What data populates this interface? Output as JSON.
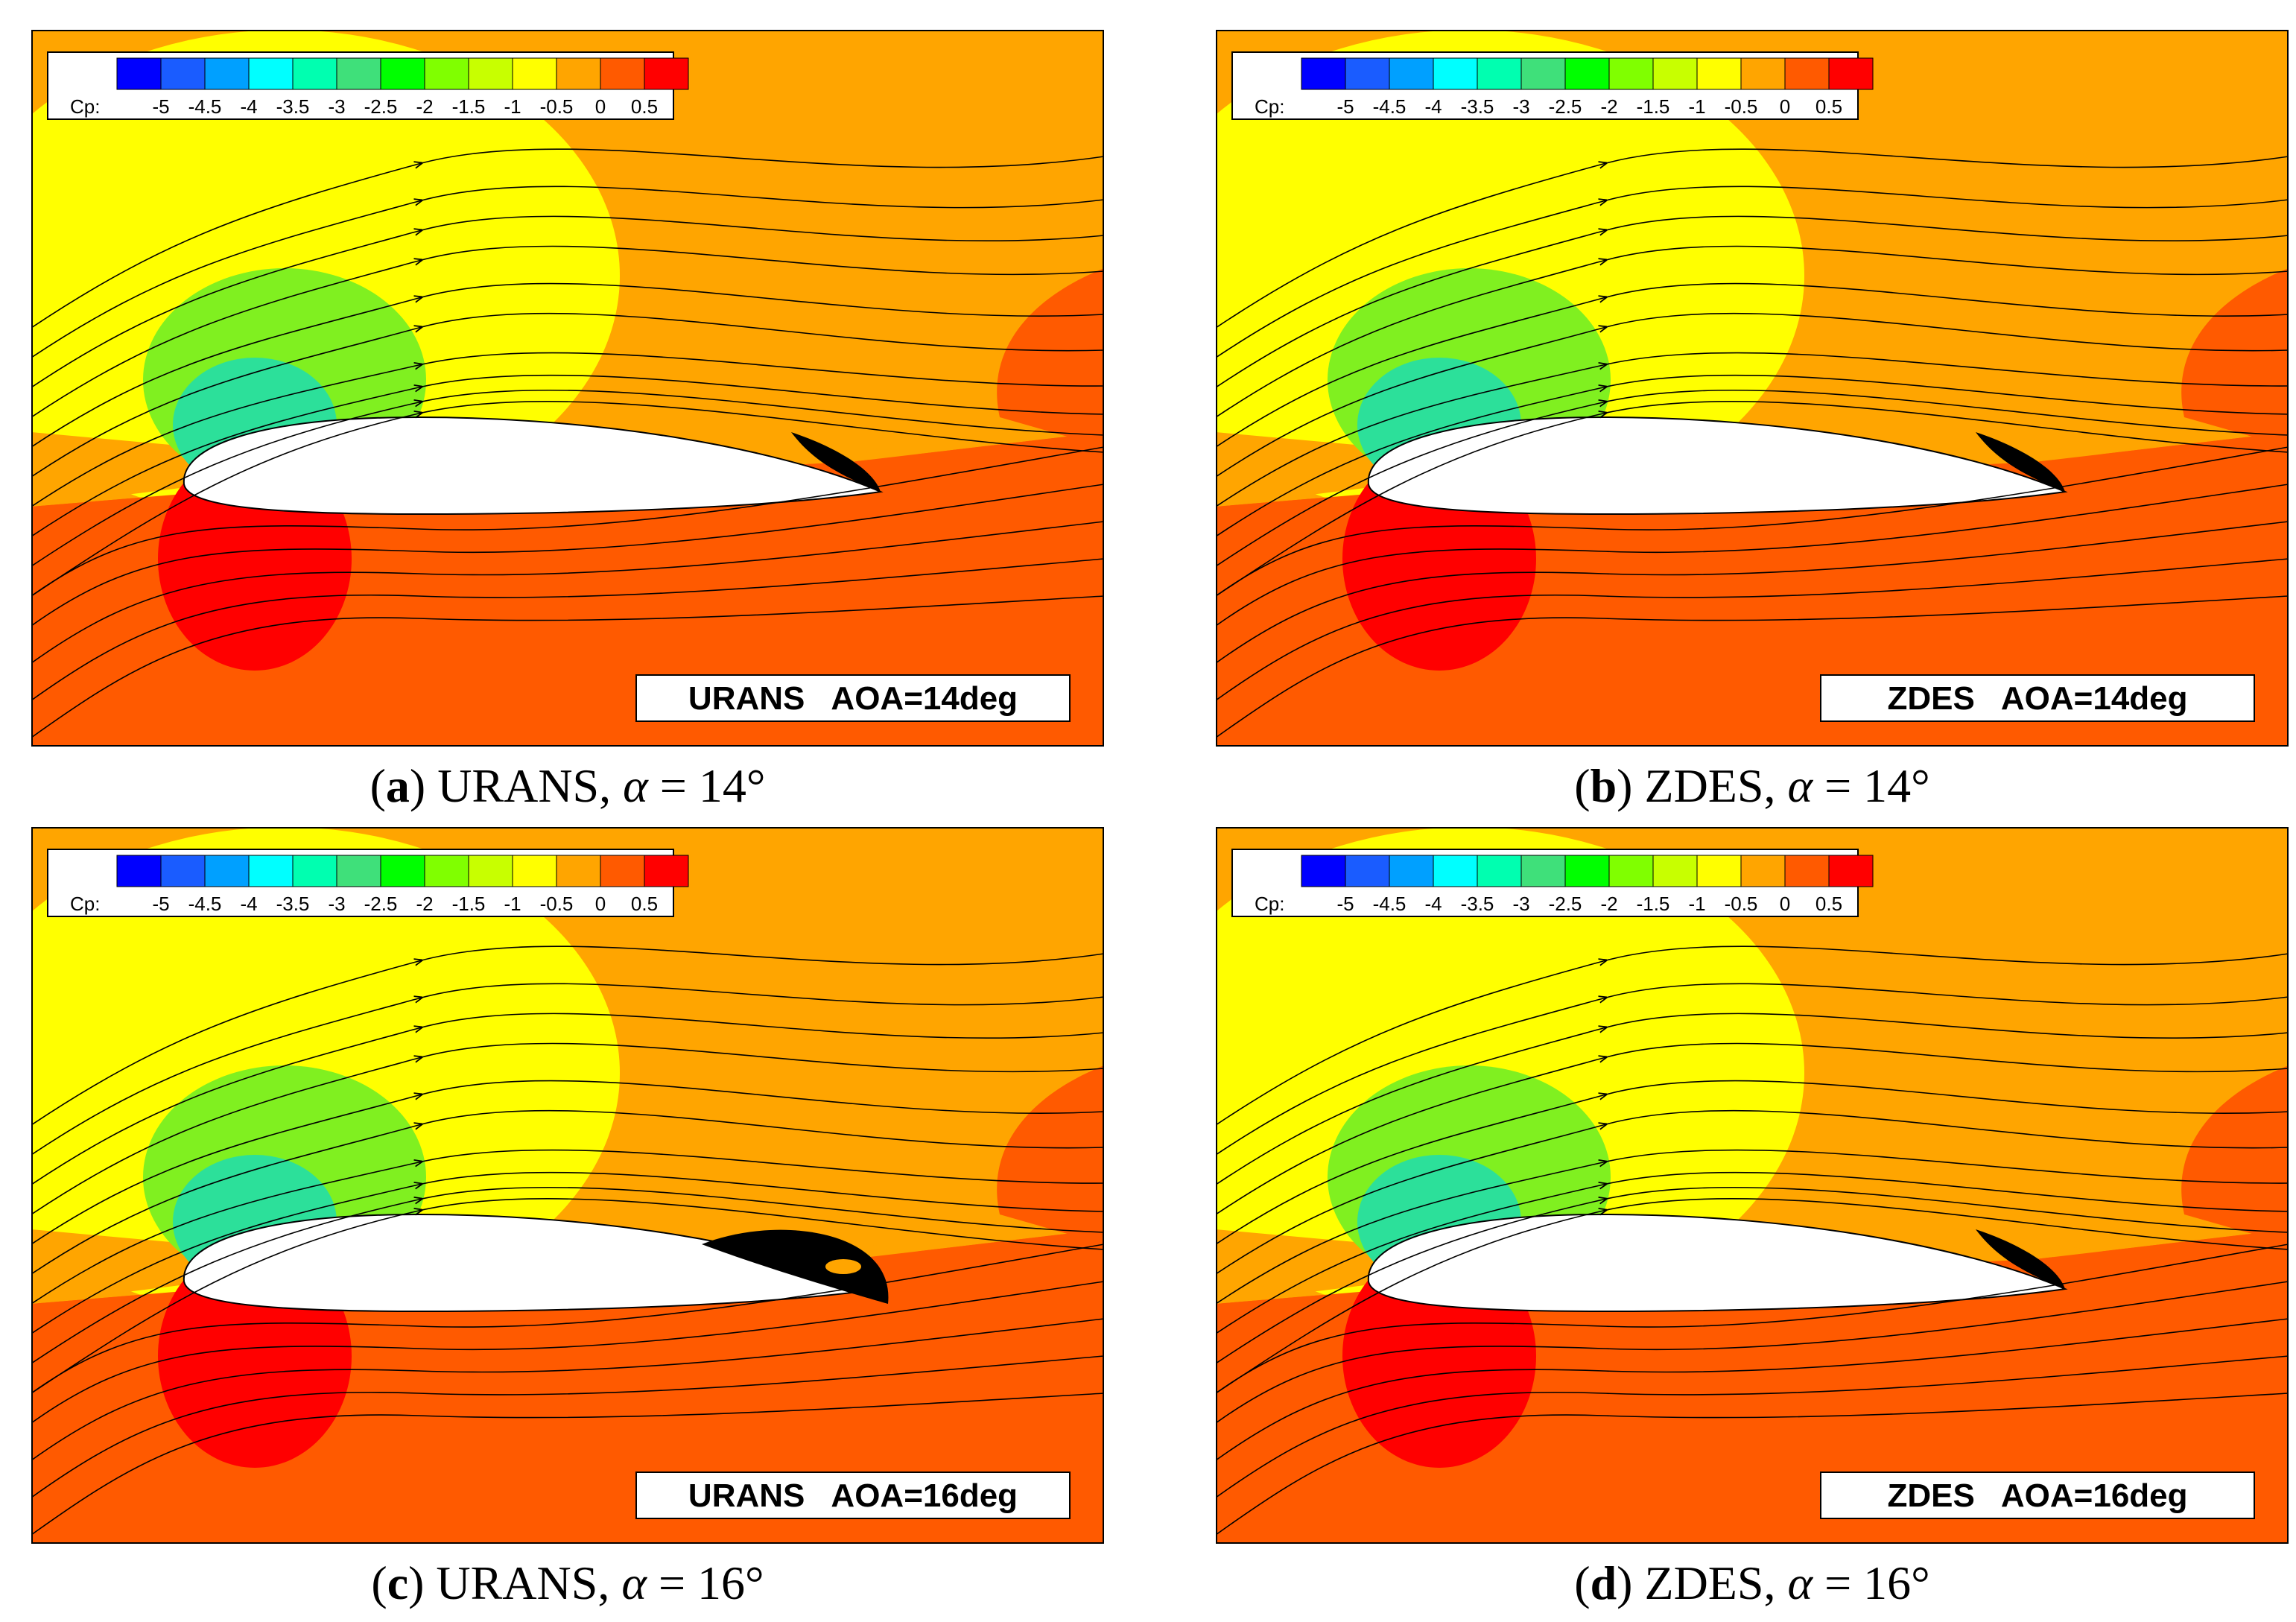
{
  "colorbar": {
    "label": "Cp:",
    "ticks": [
      "-5",
      "-4.5",
      "-4",
      "-3.5",
      "-3",
      "-2.5",
      "-2",
      "-1.5",
      "-1",
      "-0.5",
      "0",
      "0.5"
    ],
    "colors": [
      "#0000ff",
      "#1a5cff",
      "#00a0ff",
      "#00ffff",
      "#00ffb0",
      "#3fe07a",
      "#00ff00",
      "#80ff00",
      "#c8ff00",
      "#ffff00",
      "#ffa500",
      "#ff5a00",
      "#ff0000"
    ]
  },
  "field_colors": {
    "freestream": "#ffa500",
    "suction_inner": "#2ce09a",
    "suction_mid": "#80f020",
    "suction_outer": "#ffff00",
    "pressure_side": "#ff5a00",
    "stagnation": "#ff0000",
    "airfoil": "#ffffff"
  },
  "panels": [
    {
      "tag": "URANS   AOA=14deg",
      "caption_letter": "a",
      "caption_method": "URANS,",
      "caption_alpha_symbol": "α",
      "caption_alpha_value": "= 14°"
    },
    {
      "tag": "ZDES   AOA=14deg",
      "caption_letter": "b",
      "caption_method": "ZDES,",
      "caption_alpha_symbol": "α",
      "caption_alpha_value": "= 14°"
    },
    {
      "tag": "URANS   AOA=16deg",
      "caption_letter": "c",
      "caption_method": "URANS,",
      "caption_alpha_symbol": "α",
      "caption_alpha_value": "= 16°"
    },
    {
      "tag": "ZDES   AOA=16deg",
      "caption_letter": "d",
      "caption_method": "ZDES,",
      "caption_alpha_symbol": "α",
      "caption_alpha_value": "= 16°"
    }
  ]
}
